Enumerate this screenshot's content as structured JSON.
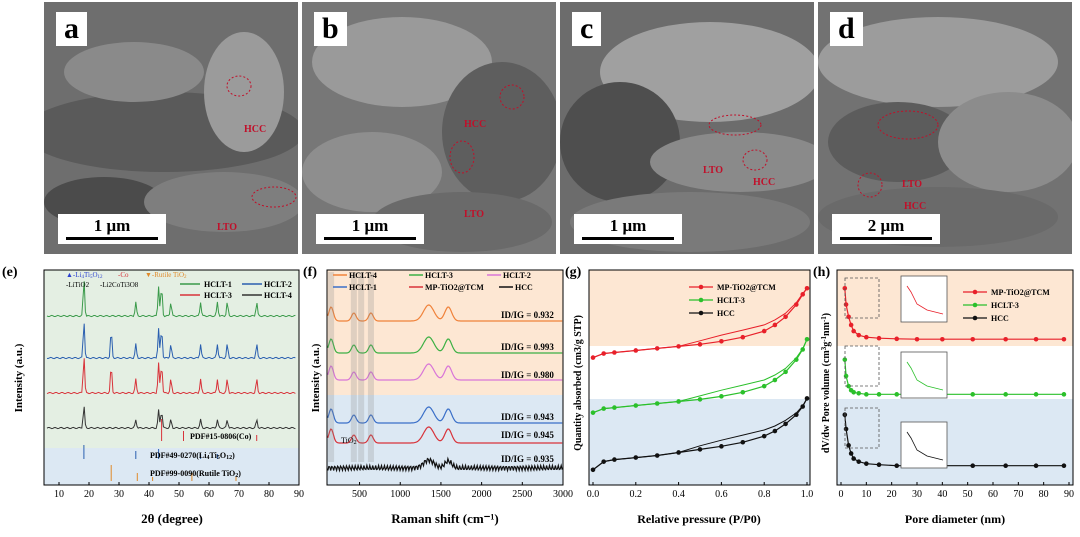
{
  "sem_panels": [
    {
      "letter": "a",
      "scale": "1 μm",
      "labels": [
        "HCC",
        "LTO"
      ]
    },
    {
      "letter": "b",
      "scale": "1 μm",
      "labels": [
        "HCC",
        "LTO"
      ]
    },
    {
      "letter": "c",
      "scale": "1 μm",
      "labels": [
        "LTO",
        "HCC"
      ]
    },
    {
      "letter": "d",
      "scale": "2 μm",
      "labels": [
        "LTO",
        "HCC"
      ]
    }
  ],
  "chart_data": [
    {
      "panel": "(e)",
      "type": "line",
      "xlabel": "2θ (degree)",
      "ylabel": "Intensity (a.u.)",
      "xlim": [
        5,
        90
      ],
      "xticks": [
        10,
        20,
        30,
        40,
        50,
        60,
        70,
        80,
        90
      ],
      "legend_markers": [
        "Li4Ti5O12",
        "-Co",
        "Rutile TiO2",
        "-LiTiO2",
        "-Li2CoTi3O8"
      ],
      "series": [
        {
          "name": "HCLT-1",
          "color": "#3a9a4a"
        },
        {
          "name": "HCLT-2",
          "color": "#2a5fb0"
        },
        {
          "name": "HCLT-3",
          "color": "#d8333a"
        },
        {
          "name": "HCLT-4",
          "color": "#333333"
        }
      ],
      "reference_labels": [
        "PDF#15-0806(Co)",
        "PDF#49-0270(Li4Ti5O12)",
        "PDF#99-0090(Rutile TiO2)"
      ]
    },
    {
      "panel": "(f)",
      "type": "line",
      "xlabel": "Raman shift (cm⁻¹)",
      "ylabel": "Intensity (a.u.)",
      "xlim": [
        100,
        3000
      ],
      "xticks": [
        500,
        1000,
        1500,
        2000,
        2500,
        3000
      ],
      "series": [
        {
          "name": "HCLT-4",
          "color": "#f0823a",
          "ratio": "ID/IG = 0.932"
        },
        {
          "name": "HCLT-3",
          "color": "#3cb044",
          "ratio": "ID/IG = 0.993"
        },
        {
          "name": "HCLT-2",
          "color": "#d875d8",
          "ratio": "ID/IG = 0.980"
        },
        {
          "name": "HCLT-1",
          "color": "#3a6fc8",
          "ratio": "ID/IG = 0.943"
        },
        {
          "name": "MP-TiO2@TCM",
          "color": "#d8333a",
          "ratio": "ID/IG = 0.945"
        },
        {
          "name": "HCC",
          "color": "#111111",
          "ratio": "ID/IG = 0.935"
        }
      ],
      "annotation": "TiO2"
    },
    {
      "panel": "(g)",
      "type": "line",
      "xlabel": "Relative pressure (P/P0)",
      "ylabel": "Quantity absorbed (cm3/g STP)",
      "xlim": [
        0,
        1.0
      ],
      "xticks": [
        0.0,
        0.2,
        0.4,
        0.6,
        0.8,
        1.0
      ],
      "series": [
        {
          "name": "MP-TiO2@TCM",
          "color": "#e8202a",
          "x": [
            0.0,
            0.05,
            0.1,
            0.2,
            0.3,
            0.4,
            0.5,
            0.6,
            0.7,
            0.8,
            0.85,
            0.9,
            0.95,
            0.98,
            1.0
          ],
          "y": [
            6.0,
            6.2,
            6.25,
            6.35,
            6.45,
            6.55,
            6.65,
            6.8,
            7.0,
            7.3,
            7.6,
            8.0,
            8.6,
            9.1,
            9.4
          ]
        },
        {
          "name": "HCLT-3",
          "color": "#2bc02b",
          "x": [
            0.0,
            0.05,
            0.1,
            0.2,
            0.3,
            0.4,
            0.5,
            0.6,
            0.7,
            0.8,
            0.85,
            0.9,
            0.95,
            0.98,
            1.0
          ],
          "y": [
            3.3,
            3.5,
            3.55,
            3.65,
            3.75,
            3.85,
            3.95,
            4.1,
            4.3,
            4.6,
            4.9,
            5.3,
            5.9,
            6.4,
            6.9
          ]
        },
        {
          "name": "HCC",
          "color": "#111111",
          "x": [
            0.0,
            0.05,
            0.1,
            0.2,
            0.3,
            0.4,
            0.5,
            0.6,
            0.7,
            0.8,
            0.85,
            0.9,
            0.95,
            0.98,
            1.0
          ],
          "y": [
            0.5,
            0.9,
            1.0,
            1.1,
            1.2,
            1.35,
            1.5,
            1.65,
            1.85,
            2.15,
            2.4,
            2.75,
            3.2,
            3.6,
            4.0
          ]
        }
      ]
    },
    {
      "panel": "(h)",
      "type": "line",
      "xlabel": "Pore diameter (nm)",
      "ylabel": "dV/dw Pore volume (cm3 g-1 nm-1)",
      "xlim": [
        0,
        90
      ],
      "xticks": [
        0,
        10,
        20,
        30,
        40,
        50,
        60,
        70,
        80,
        90
      ],
      "series": [
        {
          "name": "MP-TiO2@TCM",
          "color": "#e8202a",
          "x": [
            1.5,
            2,
            3,
            4,
            5,
            7,
            10,
            15,
            22,
            30,
            40,
            52,
            65,
            77,
            88
          ],
          "y": [
            9.4,
            8.6,
            8.0,
            7.6,
            7.3,
            7.1,
            7.0,
            6.95,
            6.92,
            6.9,
            6.9,
            6.9,
            6.9,
            6.9,
            6.9
          ]
        },
        {
          "name": "HCLT-3",
          "color": "#2bc02b",
          "x": [
            1.5,
            2,
            3,
            4,
            5,
            7,
            10,
            15,
            22,
            30,
            40,
            52,
            65,
            77,
            88
          ],
          "y": [
            5.9,
            5.1,
            4.6,
            4.4,
            4.3,
            4.25,
            4.2,
            4.2,
            4.2,
            4.2,
            4.2,
            4.2,
            4.2,
            4.2,
            4.2
          ]
        },
        {
          "name": "HCC",
          "color": "#111111",
          "x": [
            1.5,
            2,
            3,
            4,
            5,
            7,
            10,
            15,
            22,
            30,
            40,
            52,
            65,
            77,
            88
          ],
          "y": [
            3.2,
            2.5,
            1.7,
            1.3,
            1.05,
            0.9,
            0.8,
            0.75,
            0.7,
            0.7,
            0.7,
            0.7,
            0.7,
            0.7,
            0.7
          ]
        }
      ]
    }
  ],
  "colors": {
    "bg_e_top": "#e4efe3",
    "bg_f_top": "#fde7d3",
    "bg_g_top": "#fde7d3",
    "bg_bottom": "#dce8f3",
    "red": "#e8202a",
    "green": "#2bc02b"
  }
}
